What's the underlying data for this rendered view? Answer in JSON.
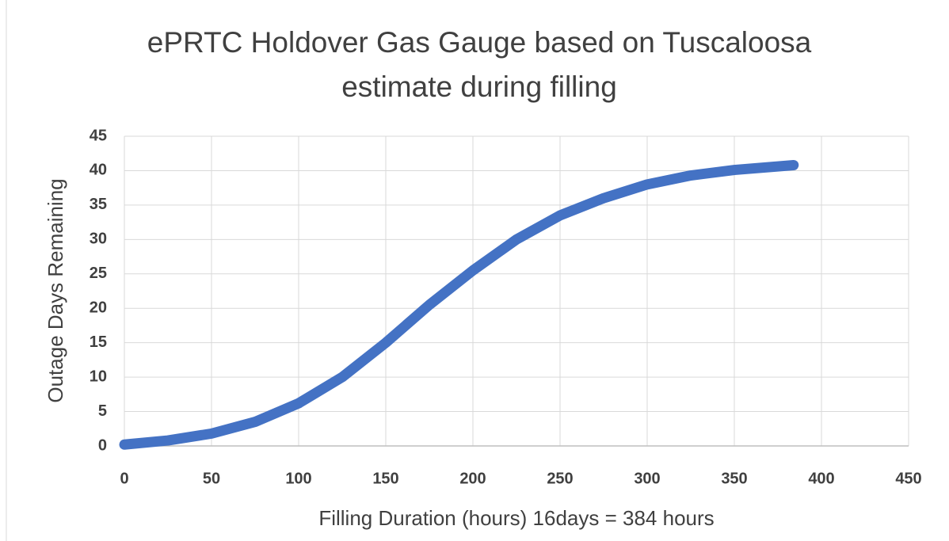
{
  "chart_data": {
    "type": "line",
    "title": "ePRTC Holdover Gas Gauge based on Tuscaloosa estimate during filling",
    "x_label": "Filling Duration (hours) 16days = 384 hours",
    "y_label": "Outage Days Remaining",
    "x": [
      0,
      25,
      50,
      75,
      100,
      125,
      150,
      175,
      200,
      225,
      250,
      275,
      300,
      325,
      350,
      384
    ],
    "series": [
      {
        "name": "Outage Days Remaining",
        "color": "#4472c4",
        "values": [
          0.2,
          0.8,
          1.8,
          3.5,
          6.2,
          10,
          15,
          20.5,
          25.5,
          30,
          33.5,
          36,
          38,
          39.3,
          40.1,
          40.8
        ]
      }
    ],
    "xlim": [
      0,
      450
    ],
    "xticks": [
      0,
      50,
      100,
      150,
      200,
      250,
      300,
      350,
      400,
      450
    ],
    "ylim": [
      0,
      45
    ],
    "yticks": [
      0,
      5,
      10,
      15,
      20,
      25,
      30,
      35,
      40,
      45
    ],
    "grid": true
  }
}
